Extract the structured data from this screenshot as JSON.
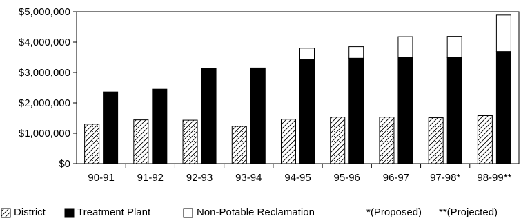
{
  "chart_data": {
    "type": "bar",
    "stacked_series": [
      "Treatment Plant",
      "Non-Potable Reclamation"
    ],
    "categories": [
      "90-91",
      "91-92",
      "92-93",
      "93-94",
      "94-95",
      "95-96",
      "96-97",
      "97-98*",
      "98-99**"
    ],
    "series": [
      {
        "name": "District",
        "pattern": "hatch",
        "values": [
          1300000,
          1440000,
          1430000,
          1230000,
          1460000,
          1530000,
          1530000,
          1510000,
          1580000
        ]
      },
      {
        "name": "Treatment Plant",
        "color": "#000000",
        "values": [
          2360000,
          2450000,
          3130000,
          3150000,
          3420000,
          3470000,
          3510000,
          3490000,
          3690000
        ]
      },
      {
        "name": "Non-Potable Reclamation",
        "color": "#ffffff",
        "values": [
          0,
          0,
          0,
          0,
          380000,
          380000,
          670000,
          700000,
          1200000
        ]
      }
    ],
    "yticks": [
      "$0",
      "$1,000,000",
      "$2,000,000",
      "$3,000,000",
      "$4,000,000",
      "$5,000,000"
    ],
    "ylim": [
      0,
      5000000
    ],
    "legend": {
      "position": "bottom",
      "items": [
        "District",
        "Treatment Plant",
        "Non-Potable Reclamation"
      ],
      "notes": [
        "*(Proposed)",
        "**(Projected)"
      ]
    }
  }
}
